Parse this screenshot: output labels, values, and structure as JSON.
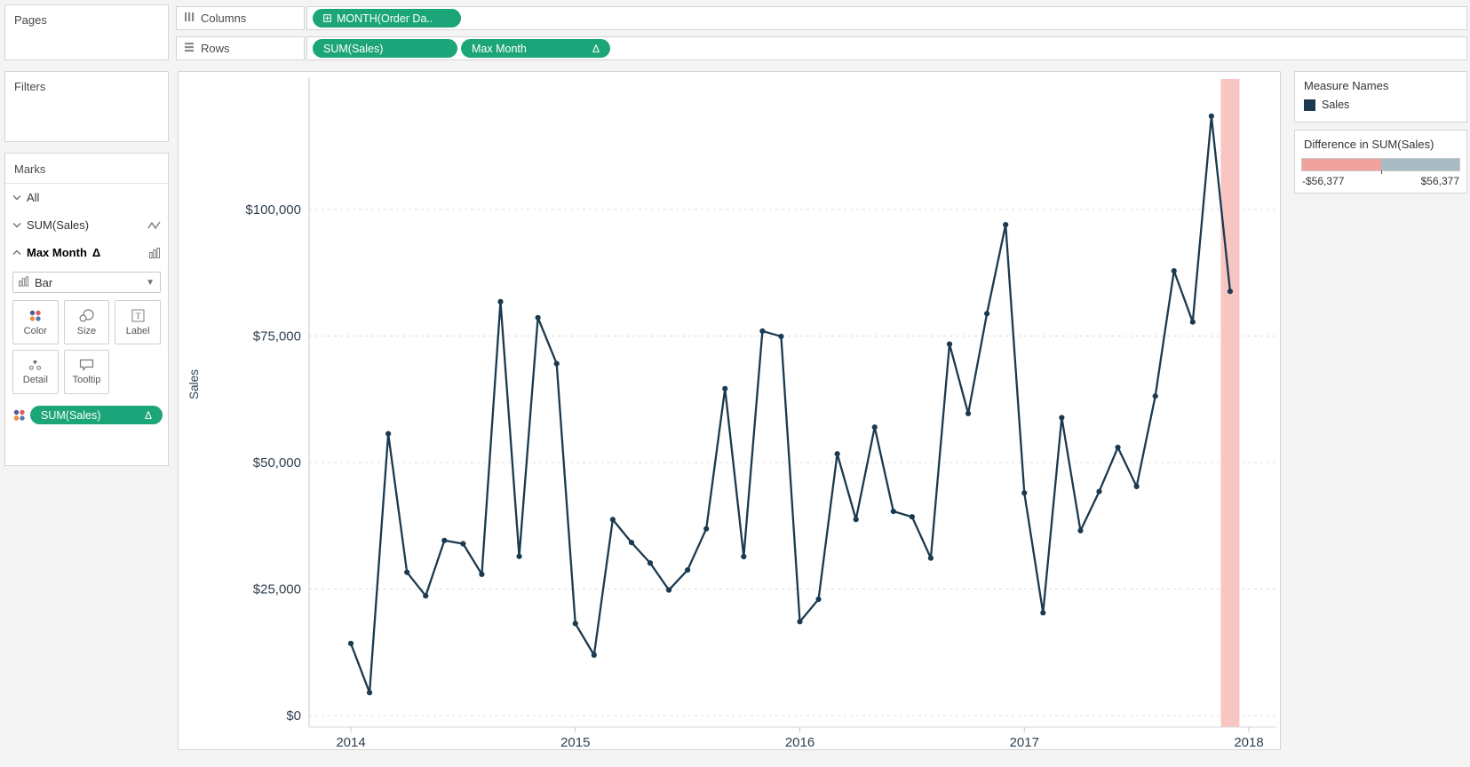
{
  "app": {
    "accent_green": "#1ca579",
    "background": "#f4f4f4"
  },
  "pages_panel": {
    "label": "Pages"
  },
  "filters_panel": {
    "label": "Filters"
  },
  "shelves": {
    "columns": {
      "label": "Columns",
      "pills": [
        {
          "label": "MONTH(Order Da..",
          "icon": "squared-plus-icon",
          "color": "#1ca579"
        }
      ]
    },
    "rows": {
      "label": "Rows",
      "pills": [
        {
          "label": "SUM(Sales)",
          "color": "#1ca579"
        },
        {
          "label": "Max Month",
          "suffix": "Δ",
          "color": "#1ca579"
        }
      ]
    }
  },
  "marks_panel": {
    "title": "Marks",
    "rows": [
      {
        "label": "All",
        "chevron": "down"
      },
      {
        "label": "SUM(Sales)",
        "chevron": "down",
        "right_icon": "line-mark-icon"
      },
      {
        "label": "Max Month",
        "suffix": "Δ",
        "chevron": "up",
        "right_icon": "bar-mark-icon",
        "selected": true
      }
    ],
    "mark_type": {
      "value": "Bar",
      "icon": "bar-mark-icon"
    },
    "buttons": [
      {
        "label": "Color"
      },
      {
        "label": "Size"
      },
      {
        "label": "Label"
      },
      {
        "label": "Detail"
      },
      {
        "label": "Tooltip"
      }
    ],
    "color_icon_palette": [
      "#4f5a99",
      "#e2595c",
      "#f08b38",
      "#5b78ad"
    ],
    "encoding_pill": {
      "label": "SUM(Sales)",
      "suffix": "Δ",
      "color": "#1ca579"
    }
  },
  "legends": {
    "measure_names": {
      "title": "Measure Names",
      "items": [
        {
          "label": "Sales",
          "swatch_color": "#1b3a4f"
        }
      ]
    },
    "difference": {
      "title": "Difference in SUM(Sales)",
      "negative_color": "#f2a29e",
      "positive_color": "#a9bbc5",
      "min_label": "-$56,377",
      "max_label": "$56,377"
    }
  },
  "chart_data": {
    "type": "line",
    "title": "",
    "xlabel": "",
    "ylabel": "Sales",
    "line_color": "#1b3a4f",
    "marker": "circle",
    "grid": "horizontal-dashed",
    "legend_position": "right",
    "ylim": [
      0,
      125000
    ],
    "yticks": [
      {
        "value": 0,
        "label": "$0"
      },
      {
        "value": 25000,
        "label": "$25,000"
      },
      {
        "value": 50000,
        "label": "$50,000"
      },
      {
        "value": 75000,
        "label": "$75,000"
      },
      {
        "value": 100000,
        "label": "$100,000"
      }
    ],
    "xticks": [
      "2014",
      "2015",
      "2016",
      "2017",
      "2018"
    ],
    "highlight_band": {
      "label": "Max Month",
      "month_index": 47,
      "color": "#f9c5c3"
    },
    "x": [
      "Jan 2014",
      "Feb 2014",
      "Mar 2014",
      "Apr 2014",
      "May 2014",
      "Jun 2014",
      "Jul 2014",
      "Aug 2014",
      "Sep 2014",
      "Oct 2014",
      "Nov 2014",
      "Dec 2014",
      "Jan 2015",
      "Feb 2015",
      "Mar 2015",
      "Apr 2015",
      "May 2015",
      "Jun 2015",
      "Jul 2015",
      "Aug 2015",
      "Sep 2015",
      "Oct 2015",
      "Nov 2015",
      "Dec 2015",
      "Jan 2016",
      "Feb 2016",
      "Mar 2016",
      "Apr 2016",
      "May 2016",
      "Jun 2016",
      "Jul 2016",
      "Aug 2016",
      "Sep 2016",
      "Oct 2016",
      "Nov 2016",
      "Dec 2016",
      "Jan 2017",
      "Feb 2017",
      "Mar 2017",
      "Apr 2017",
      "May 2017",
      "Jun 2017",
      "Jul 2017",
      "Aug 2017",
      "Sep 2017",
      "Oct 2017",
      "Nov 2017",
      "Dec 2017"
    ],
    "series": [
      {
        "name": "Sales",
        "values": [
          14237,
          4520,
          55691,
          28295,
          23648,
          34595,
          33946,
          27909,
          81777,
          31453,
          78629,
          69545,
          18174,
          11951,
          38726,
          34195,
          30131,
          24797,
          28765,
          36898,
          64595,
          31404,
          75973,
          74920,
          18542,
          22978,
          51716,
          38750,
          56988,
          40344,
          39262,
          31115,
          73410,
          59687,
          79412,
          96999,
          43971,
          20301,
          58872,
          36522,
          44261,
          52982,
          45264,
          63121,
          87867,
          77777,
          118448,
          83829
        ]
      }
    ]
  }
}
